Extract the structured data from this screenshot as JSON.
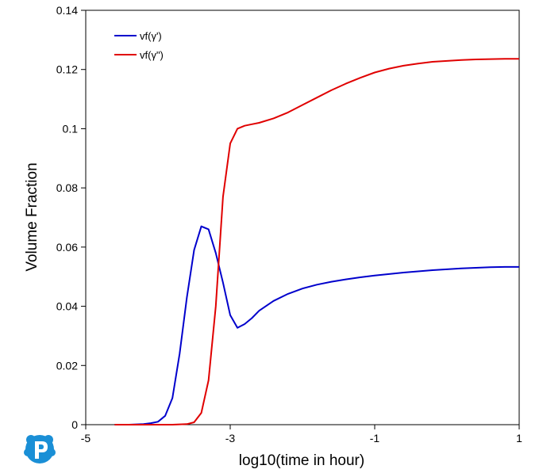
{
  "chart_data": {
    "type": "line",
    "title": "",
    "xlabel": "log10(time in hour)",
    "ylabel": "Volume Fraction",
    "xlim": [
      -5,
      1
    ],
    "ylim": [
      0,
      0.14
    ],
    "xticks": [
      -5,
      -3,
      -1,
      1
    ],
    "xtick_labels": [
      "-5",
      "-3",
      "-1",
      "1"
    ],
    "yticks": [
      0,
      0.02,
      0.04,
      0.06,
      0.08,
      0.1,
      0.12,
      0.14
    ],
    "ytick_labels": [
      "0",
      "0.02",
      "0.04",
      "0.06",
      "0.08",
      "0.1",
      "0.12",
      "0.14"
    ],
    "grid": false,
    "legend_position": "top-left",
    "series": [
      {
        "name": "vf(γ')",
        "color": "#0000cc",
        "x": [
          -4.6,
          -4.4,
          -4.2,
          -4.1,
          -4.0,
          -3.9,
          -3.8,
          -3.7,
          -3.6,
          -3.5,
          -3.4,
          -3.3,
          -3.2,
          -3.1,
          -3.0,
          -2.9,
          -2.8,
          -2.7,
          -2.6,
          -2.4,
          -2.2,
          -2.0,
          -1.8,
          -1.6,
          -1.4,
          -1.2,
          -1.0,
          -0.8,
          -0.6,
          -0.4,
          -0.2,
          0.0,
          0.2,
          0.4,
          0.6,
          0.8,
          1.0
        ],
        "y": [
          0,
          0,
          0.0002,
          0.0005,
          0.001,
          0.003,
          0.009,
          0.024,
          0.043,
          0.059,
          0.067,
          0.066,
          0.058,
          0.048,
          0.037,
          0.0327,
          0.034,
          0.036,
          0.0385,
          0.0418,
          0.0442,
          0.046,
          0.0473,
          0.0483,
          0.0491,
          0.0498,
          0.0504,
          0.0509,
          0.0514,
          0.0518,
          0.0522,
          0.0525,
          0.0528,
          0.053,
          0.0532,
          0.0533,
          0.0533
        ]
      },
      {
        "name": "vf(γ\")",
        "color": "#e00000",
        "x": [
          -4.6,
          -4.2,
          -3.8,
          -3.6,
          -3.5,
          -3.4,
          -3.3,
          -3.2,
          -3.1,
          -3.0,
          -2.9,
          -2.8,
          -2.7,
          -2.6,
          -2.4,
          -2.2,
          -2.0,
          -1.8,
          -1.6,
          -1.4,
          -1.2,
          -1.0,
          -0.8,
          -0.6,
          -0.4,
          -0.2,
          0.0,
          0.2,
          0.4,
          0.6,
          0.8,
          1.0
        ],
        "y": [
          0,
          0,
          0,
          0.0002,
          0.0008,
          0.004,
          0.015,
          0.04,
          0.077,
          0.095,
          0.1,
          0.101,
          0.1015,
          0.102,
          0.1035,
          0.1055,
          0.108,
          0.1105,
          0.113,
          0.1152,
          0.1172,
          0.119,
          0.1203,
          0.1213,
          0.122,
          0.1226,
          0.1229,
          0.1232,
          0.1234,
          0.1235,
          0.1236,
          0.1236
        ]
      }
    ]
  }
}
